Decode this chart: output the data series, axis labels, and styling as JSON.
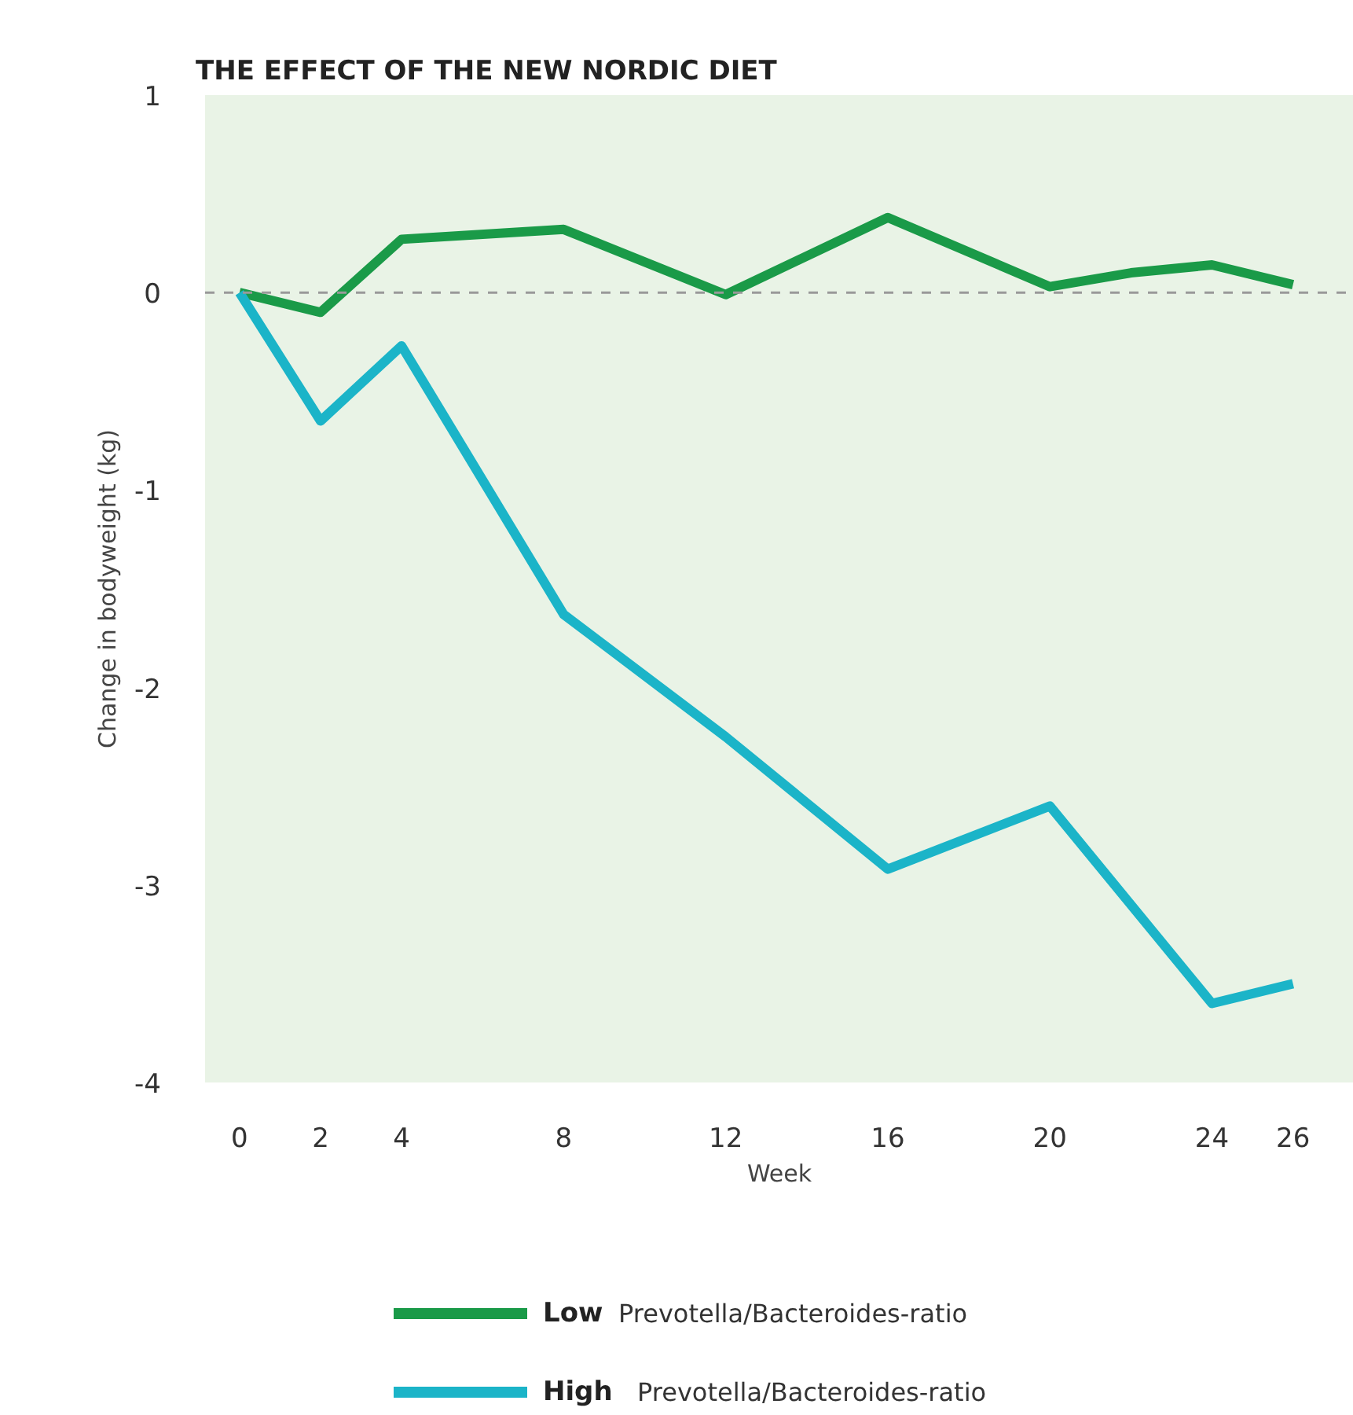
{
  "chart_data": {
    "type": "line",
    "title": "THE EFFECT OF THE NEW NORDIC DIET",
    "xlabel": "Week",
    "ylabel": "Change in bodyweight (kg)",
    "xlim": [
      -0.85,
      27.5
    ],
    "ylim": [
      -4,
      1
    ],
    "xticks": [
      0,
      2,
      4,
      8,
      12,
      16,
      20,
      24,
      26
    ],
    "yticks": [
      -4,
      -3,
      -2,
      -1,
      0,
      1
    ],
    "grid": false,
    "legend": "bottom",
    "marker": "none",
    "line_style": "solid",
    "ref_lines": [
      {
        "axis": "y",
        "value": 0,
        "color": "#999999",
        "line_style": "dashed"
      }
    ],
    "series": [
      {
        "name": "Low Prevotella/Bacteroides-ratio",
        "color": "#1a9a48",
        "x": [
          0,
          2,
          4,
          8,
          12,
          16,
          20,
          22,
          24,
          26
        ],
        "values": [
          0,
          -0.1,
          0.27,
          0.32,
          -0.01,
          0.38,
          0.03,
          0.1,
          0.14,
          0.04
        ]
      },
      {
        "name": "High Prevotella/Bacteroides-ratio",
        "color": "#1bb4c8",
        "x": [
          0,
          2,
          4,
          8,
          12,
          16,
          20,
          24,
          26
        ],
        "values": [
          0,
          -0.65,
          -0.27,
          -1.63,
          -2.25,
          -2.92,
          -2.6,
          -3.6,
          -3.5
        ]
      }
    ]
  }
}
